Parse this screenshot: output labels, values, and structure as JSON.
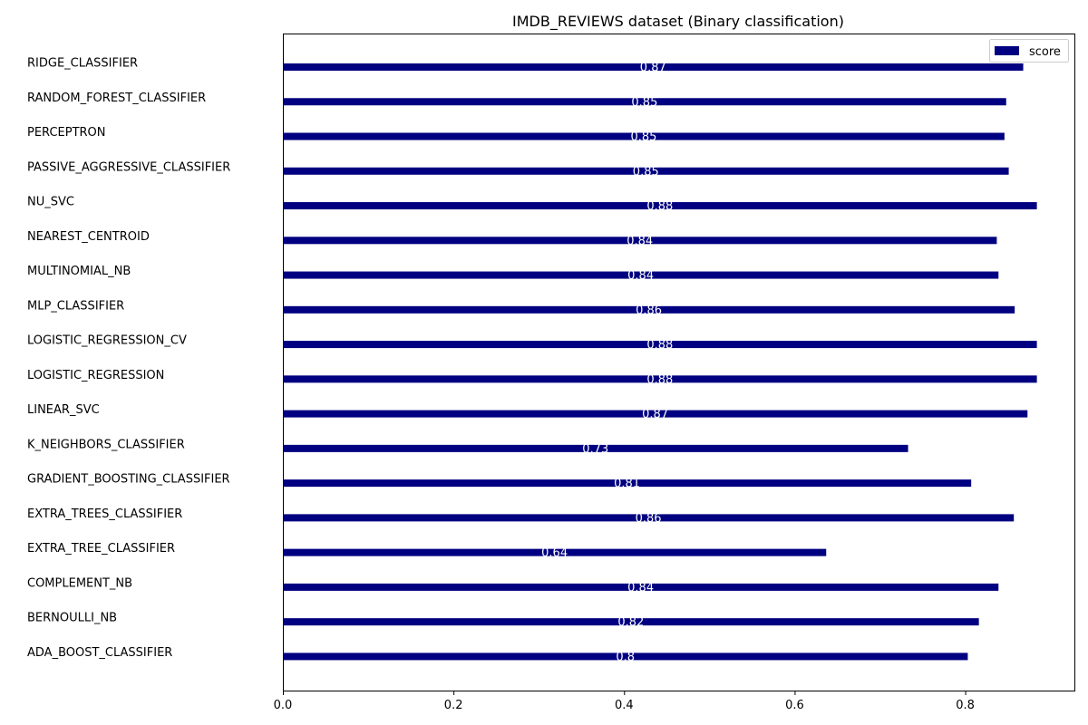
{
  "chart_data": {
    "type": "bar",
    "orientation": "horizontal",
    "title": "IMDB_REVIEWS dataset (Binary classification)",
    "xlabel": "",
    "ylabel": "",
    "xlim": [
      0,
      0.928
    ],
    "xticks": [
      0.0,
      0.2,
      0.4,
      0.6,
      0.8
    ],
    "xtick_labels": [
      "0.0",
      "0.2",
      "0.4",
      "0.6",
      "0.8"
    ],
    "legend": {
      "position": "top-right",
      "entries": [
        "score"
      ]
    },
    "grid": false,
    "colors": {
      "bar": "#000080",
      "data_label": "#ffffff"
    },
    "series": [
      {
        "name": "score",
        "categories": [
          "RIDGE_CLASSIFIER",
          "RANDOM_FOREST_CLASSIFIER",
          "PERCEPTRON",
          "PASSIVE_AGGRESSIVE_CLASSIFIER",
          "NU_SVC",
          "NEAREST_CENTROID",
          "MULTINOMIAL_NB",
          "MLP_CLASSIFIER",
          "LOGISTIC_REGRESSION_CV",
          "LOGISTIC_REGRESSION",
          "LINEAR_SVC",
          "K_NEIGHBORS_CLASSIFIER",
          "GRADIENT_BOOSTING_CLASSIFIER",
          "EXTRA_TREES_CLASSIFIER",
          "EXTRA_TREE_CLASSIFIER",
          "COMPLEMENT_NB",
          "BERNOULLI_NB",
          "ADA_BOOST_CLASSIFIER"
        ],
        "values": [
          0.868,
          0.848,
          0.846,
          0.851,
          0.884,
          0.837,
          0.839,
          0.858,
          0.884,
          0.884,
          0.873,
          0.733,
          0.807,
          0.857,
          0.637,
          0.839,
          0.816,
          0.803
        ],
        "labels": [
          "0.87",
          "0.85",
          "0.85",
          "0.85",
          "0.88",
          "0.84",
          "0.84",
          "0.86",
          "0.88",
          "0.88",
          "0.87",
          "0.73",
          "0.81",
          "0.86",
          "0.64",
          "0.84",
          "0.82",
          "0.8"
        ]
      }
    ]
  }
}
